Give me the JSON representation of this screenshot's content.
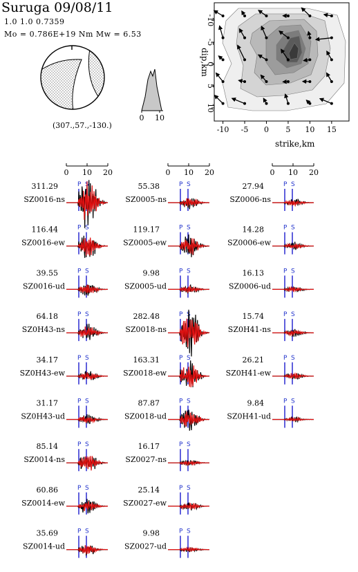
{
  "header": {
    "title": "Suruga 09/08/11",
    "params": "1.0 1.0      0.7359",
    "moment": "Mo =   0.786E+19 Nm     Mw =    6.53"
  },
  "mechanism": {
    "label": "(307.,57.,-130.)"
  },
  "stf_axis": {
    "ticks": [
      "0",
      "10"
    ]
  },
  "slip_map": {
    "xlabel": "strike,km",
    "ylabel": "dip,km",
    "xticks": [
      "-10",
      "-5",
      "0",
      "5",
      "10",
      "15"
    ],
    "yticks": [
      "-10",
      "-5",
      "0",
      "5",
      "10"
    ],
    "xlim": [
      -12,
      19
    ],
    "ylim": [
      -14,
      13
    ]
  },
  "time_axis": {
    "ticks": [
      "0",
      "10",
      "20"
    ]
  },
  "phase_labels": {
    "p": "P",
    "s": "S"
  },
  "columns": [
    {
      "stations": [
        {
          "amp": "311.29",
          "name": "SZ0016-ns",
          "scale": 4.4
        },
        {
          "amp": "116.44",
          "name": "SZ0016-ew",
          "scale": 2.0
        },
        {
          "amp": "39.55",
          "name": "SZ0016-ud",
          "scale": 1.0
        },
        {
          "amp": "64.18",
          "name": "SZ0H43-ns",
          "scale": 1.3
        },
        {
          "amp": "34.17",
          "name": "SZ0H43-ew",
          "scale": 0.9
        },
        {
          "amp": "31.17",
          "name": "SZ0H43-ud",
          "scale": 0.8
        },
        {
          "amp": "85.14",
          "name": "SZ0014-ns",
          "scale": 1.6
        },
        {
          "amp": "60.86",
          "name": "SZ0014-ew",
          "scale": 1.2
        },
        {
          "amp": "35.69",
          "name": "SZ0014-ud",
          "scale": 0.9
        }
      ]
    },
    {
      "stations": [
        {
          "amp": "55.38",
          "name": "SZ0005-ns",
          "scale": 1.0
        },
        {
          "amp": "119.17",
          "name": "SZ0005-ew",
          "scale": 1.9
        },
        {
          "amp": "9.98",
          "name": "SZ0005-ud",
          "scale": 0.7
        },
        {
          "amp": "282.48",
          "name": "SZ0018-ns",
          "scale": 4.0
        },
        {
          "amp": "163.31",
          "name": "SZ0018-ew",
          "scale": 2.6
        },
        {
          "amp": "87.87",
          "name": "SZ0018-ud",
          "scale": 1.8
        },
        {
          "amp": "16.17",
          "name": "SZ0027-ns",
          "scale": 0.5
        },
        {
          "amp": "25.14",
          "name": "SZ0027-ew",
          "scale": 0.7
        },
        {
          "amp": "9.98",
          "name": "SZ0027-ud",
          "scale": 0.5
        }
      ]
    },
    {
      "stations": [
        {
          "amp": "27.94",
          "name": "SZ0006-ns",
          "scale": 0.6
        },
        {
          "amp": "14.28",
          "name": "SZ0006-ew",
          "scale": 0.6
        },
        {
          "amp": "16.13",
          "name": "SZ0006-ud",
          "scale": 0.5
        },
        {
          "amp": "15.74",
          "name": "SZ0H41-ns",
          "scale": 0.6
        },
        {
          "amp": "26.21",
          "name": "SZ0H41-ew",
          "scale": 0.6
        },
        {
          "amp": "9.84",
          "name": "SZ0H41-ud",
          "scale": 0.4
        }
      ]
    }
  ],
  "colors": {
    "observed": "#000000",
    "synthetic": "#e01010",
    "phase_marker": "#1a1acc",
    "contour_levels": [
      "#efefef",
      "#d4d4d4",
      "#b9b9b9",
      "#9c9c9c",
      "#7c7c7c",
      "#5a5a5a",
      "#3a3a3a"
    ]
  }
}
